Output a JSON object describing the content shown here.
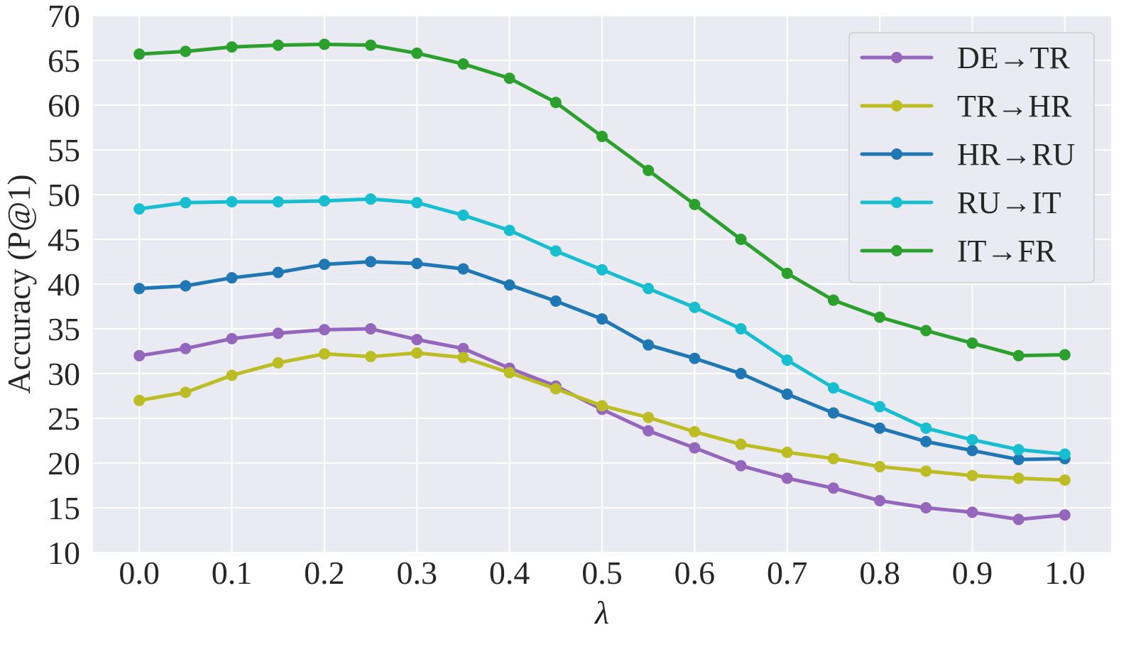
{
  "chart_data": {
    "type": "line",
    "title": "",
    "xlabel": "λ",
    "ylabel": "Accuracy (P@1)",
    "xlim": [
      -0.05,
      1.05
    ],
    "ylim": [
      10,
      70
    ],
    "grid": true,
    "legend_position": "top-right",
    "x": [
      0.0,
      0.05,
      0.1,
      0.15,
      0.2,
      0.25,
      0.3,
      0.35,
      0.4,
      0.45,
      0.5,
      0.55,
      0.6,
      0.65,
      0.7,
      0.75,
      0.8,
      0.85,
      0.9,
      0.95,
      1.0
    ],
    "x_ticks": [
      0.0,
      0.1,
      0.2,
      0.3,
      0.4,
      0.5,
      0.6,
      0.7,
      0.8,
      0.9,
      1.0
    ],
    "x_tick_labels": [
      "0.0",
      "0.1",
      "0.2",
      "0.3",
      "0.4",
      "0.5",
      "0.6",
      "0.7",
      "0.8",
      "0.9",
      "1.0"
    ],
    "y_ticks": [
      10,
      15,
      20,
      25,
      30,
      35,
      40,
      45,
      50,
      55,
      60,
      65,
      70
    ],
    "y_tick_labels": [
      "10",
      "15",
      "20",
      "25",
      "30",
      "35",
      "40",
      "45",
      "50",
      "55",
      "60",
      "65",
      "70"
    ],
    "series": [
      {
        "name": "DE→TR",
        "color": "#9467bd",
        "values": [
          32.0,
          32.8,
          33.9,
          34.5,
          34.9,
          35.0,
          33.8,
          32.8,
          30.6,
          28.6,
          26.0,
          23.6,
          21.7,
          19.7,
          18.3,
          17.2,
          15.8,
          15.0,
          14.5,
          13.7,
          14.2
        ]
      },
      {
        "name": "TR→HR",
        "color": "#bcbd22",
        "values": [
          27.0,
          27.9,
          29.8,
          31.2,
          32.2,
          31.9,
          32.3,
          31.8,
          30.1,
          28.3,
          26.4,
          25.1,
          23.5,
          22.1,
          21.2,
          20.5,
          19.6,
          19.1,
          18.6,
          18.3,
          18.1
        ]
      },
      {
        "name": "HR→RU",
        "color": "#1f77b4",
        "values": [
          39.5,
          39.8,
          40.7,
          41.3,
          42.2,
          42.5,
          42.3,
          41.7,
          39.9,
          38.1,
          36.1,
          33.2,
          31.7,
          30.0,
          27.7,
          25.6,
          23.9,
          22.4,
          21.4,
          20.4,
          20.5
        ]
      },
      {
        "name": "RU→IT",
        "color": "#17becf",
        "values": [
          48.4,
          49.1,
          49.2,
          49.2,
          49.3,
          49.5,
          49.1,
          47.7,
          46.0,
          43.7,
          41.6,
          39.5,
          37.4,
          35.0,
          31.5,
          28.4,
          26.3,
          23.9,
          22.6,
          21.5,
          21.0
        ]
      },
      {
        "name": "IT→FR",
        "color": "#2ca02c",
        "values": [
          65.7,
          66.0,
          66.5,
          66.7,
          66.8,
          66.7,
          65.8,
          64.6,
          63.0,
          60.3,
          56.5,
          52.7,
          48.9,
          45.0,
          41.2,
          38.2,
          36.3,
          34.8,
          33.4,
          32.0,
          32.1
        ]
      }
    ]
  }
}
